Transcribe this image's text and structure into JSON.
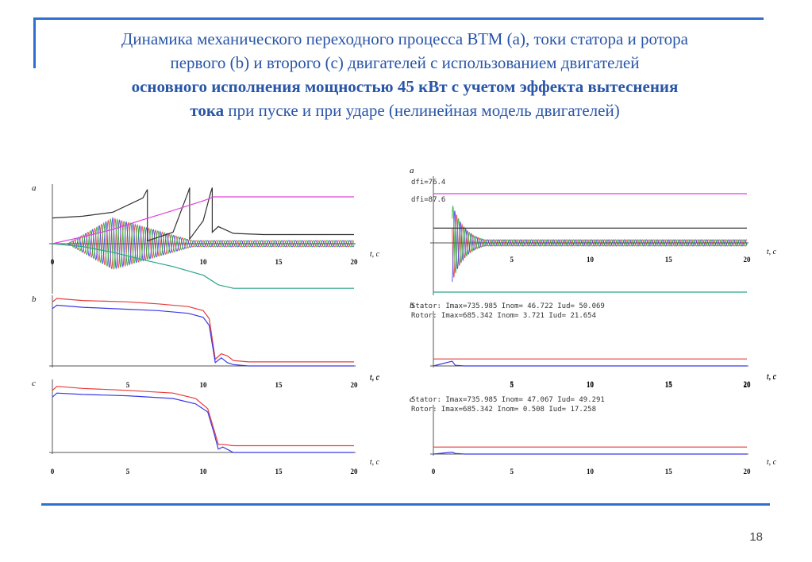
{
  "title": {
    "line1": "Динамика механического переходного процесса ВТМ (а), токи статора и ротора",
    "line2": "первого (b) и второго (c) двигателей с использованием двигателей",
    "line3_bold": "основного исполнения мощностью 45 кВт с учетом эффекта вытеснения",
    "line4_bold": "тока",
    "line4_rest": " при пуске и при ударе (нелинейная модель двигателей)"
  },
  "page_number": "18",
  "colors": {
    "accent": "#2f6fd0",
    "title": "#2a56a8",
    "black": "#333333",
    "magenta": "#e040e0",
    "teal": "#2aa58a",
    "red": "#e83a3a",
    "blue": "#3a3ae8",
    "green": "#22aa22"
  },
  "axis_label": "t, c",
  "chart_data": [
    {
      "type": "line",
      "panel": "a",
      "group": "left",
      "xlim": [
        0,
        20
      ],
      "x_ticks": [
        "0",
        "5",
        "10",
        "15",
        "20"
      ],
      "shown_ticks": [
        "0",
        "10",
        "15",
        "20"
      ],
      "series": [
        {
          "color": "black",
          "x": [
            0,
            2,
            4,
            6,
            6.3,
            6.3,
            8,
            9,
            9.1,
            9.1,
            10,
            10.5,
            10.6,
            10.6,
            11,
            12,
            14,
            20
          ],
          "y": [
            0.45,
            0.48,
            0.55,
            0.8,
            0.95,
            0.05,
            0.2,
            0.9,
            0.98,
            0.08,
            0.4,
            0.9,
            0.98,
            0.2,
            0.3,
            0.18,
            0.16,
            0.16
          ]
        },
        {
          "color": "magenta",
          "x": [
            0,
            2,
            4,
            6,
            8,
            10,
            10.7,
            12,
            20
          ],
          "y": [
            0,
            0.12,
            0.25,
            0.42,
            0.58,
            0.75,
            0.82,
            0.82,
            0.82
          ]
        },
        {
          "color": "teal",
          "x": [
            0,
            2,
            4,
            6,
            8,
            10,
            11,
            12,
            20
          ],
          "y": [
            0,
            -0.05,
            -0.15,
            -0.28,
            -0.4,
            -0.55,
            -0.72,
            -0.78,
            -0.78
          ]
        }
      ],
      "oscillation": {
        "x_start": 1,
        "x_end": 20,
        "amp_max": 0.45,
        "colors": [
          "red",
          "blue",
          "green"
        ]
      }
    },
    {
      "type": "line",
      "panel": "b",
      "group": "left",
      "xlim": [
        0,
        20
      ],
      "x_ticks": [
        "0",
        "5",
        "10",
        "15",
        "20"
      ],
      "shown_ticks": [],
      "series": [
        {
          "color": "red",
          "x": [
            0,
            0.3,
            2,
            5,
            7,
            9,
            10,
            10.4,
            10.8,
            11.2,
            11.6,
            12,
            13,
            20
          ],
          "y": [
            0.95,
            1.0,
            0.97,
            0.95,
            0.92,
            0.88,
            0.82,
            0.7,
            0.1,
            0.18,
            0.15,
            0.08,
            0.06,
            0.06
          ]
        },
        {
          "color": "blue",
          "x": [
            0,
            0.3,
            2,
            5,
            7,
            9,
            10,
            10.4,
            10.8,
            11.2,
            11.6,
            12,
            13,
            20
          ],
          "y": [
            0.85,
            0.9,
            0.87,
            0.84,
            0.82,
            0.78,
            0.72,
            0.6,
            0.05,
            0.12,
            0.05,
            0.02,
            0.0,
            0.0
          ]
        }
      ]
    },
    {
      "type": "line",
      "panel": "c",
      "group": "left",
      "xlim": [
        0,
        20
      ],
      "x_ticks": [
        "0",
        "5",
        "10",
        "15",
        "20"
      ],
      "shown_ticks": [
        "5",
        "10",
        "15",
        "20"
      ],
      "series": [
        {
          "color": "red",
          "x": [
            0,
            0.3,
            2,
            5,
            8,
            9.5,
            10.3,
            10.7,
            11.0,
            11.3,
            12,
            20
          ],
          "y": [
            0.92,
            0.98,
            0.95,
            0.92,
            0.88,
            0.8,
            0.65,
            0.35,
            0.12,
            0.12,
            0.1,
            0.1
          ]
        },
        {
          "color": "blue",
          "x": [
            0,
            0.3,
            2,
            5,
            8,
            9.5,
            10.3,
            10.7,
            11.0,
            11.3,
            12,
            20
          ],
          "y": [
            0.82,
            0.88,
            0.86,
            0.84,
            0.8,
            0.72,
            0.6,
            0.3,
            0.05,
            0.08,
            0.0,
            0.0
          ]
        }
      ],
      "bottom_ticks": [
        "0",
        "5",
        "10",
        "15",
        "20"
      ]
    },
    {
      "type": "line",
      "panel": "a",
      "group": "right",
      "annotations": [
        "dfi=76.4",
        "dfi=87.6"
      ],
      "xlim": [
        0,
        20
      ],
      "x_ticks": [
        "0",
        "5",
        "10",
        "15",
        "20"
      ],
      "shown_ticks": [
        "5",
        "10",
        "15",
        "20"
      ],
      "series": [
        {
          "color": "magenta",
          "x": [
            0,
            20
          ],
          "y": [
            1.0,
            1.0
          ]
        },
        {
          "color": "black",
          "x": [
            0,
            20
          ],
          "y": [
            0.3,
            0.3
          ]
        },
        {
          "color": "teal",
          "x": [
            0,
            20
          ],
          "y": [
            -1.0,
            -1.0
          ]
        }
      ],
      "oscillation": {
        "x_start": 1.2,
        "x_end": 20,
        "amp_max": 0.8,
        "colors": [
          "red",
          "blue",
          "green"
        ]
      }
    },
    {
      "type": "line",
      "panel": "b",
      "group": "right",
      "stator_text": "Stator: Imax=735.985 Inom= 46.722 Iud= 50.069",
      "rotor_text": "Rotor: Imax=685.342 Inom=  3.721 Iud= 21.654",
      "xlim": [
        0,
        20
      ],
      "x_ticks": [
        "0",
        "5",
        "10",
        "15",
        "20"
      ],
      "shown_ticks": [
        "5",
        "10",
        "15",
        "20"
      ],
      "series": [
        {
          "color": "red",
          "x": [
            0,
            20
          ],
          "y": [
            0.22,
            0.22
          ]
        },
        {
          "color": "blue",
          "x": [
            0,
            1.2,
            1.4,
            2,
            20
          ],
          "y": [
            0.0,
            0.15,
            0.02,
            0.0,
            0.0
          ]
        }
      ]
    },
    {
      "type": "line",
      "panel": "c",
      "group": "right",
      "stator_text": "Stator: Imax=735.985 Inom= 47.067 Iud= 49.291",
      "rotor_text": "Rotor: Imax=685.342 Inom=  0.508 Iud= 17.258",
      "xlim": [
        0,
        20
      ],
      "x_ticks": [
        "0",
        "5",
        "10",
        "15",
        "20"
      ],
      "shown_ticks": [
        "5",
        "10",
        "15",
        "20"
      ],
      "series": [
        {
          "color": "red",
          "x": [
            0,
            20
          ],
          "y": [
            0.22,
            0.22
          ]
        },
        {
          "color": "blue",
          "x": [
            0,
            1.2,
            1.4,
            2,
            20
          ],
          "y": [
            0.0,
            0.06,
            0.02,
            0.0,
            0.0
          ]
        }
      ],
      "bottom_ticks": [
        "0",
        "5",
        "10",
        "15",
        "20"
      ]
    }
  ]
}
